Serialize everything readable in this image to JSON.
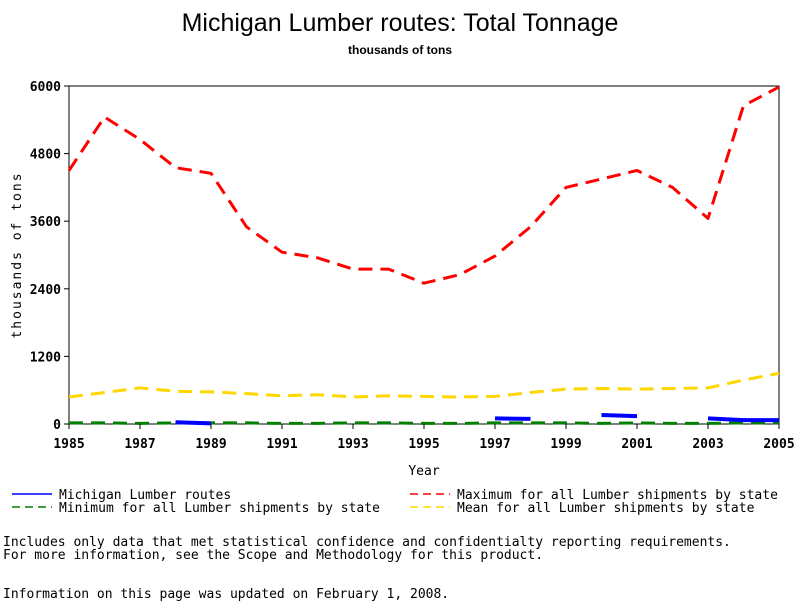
{
  "chart_data": {
    "type": "line",
    "title": "Michigan Lumber routes: Total Tonnage",
    "subtitle": "thousands of tons",
    "xlabel": "Year",
    "ylabel": "thousands of tons",
    "xlim": [
      1985,
      2005
    ],
    "ylim": [
      0,
      6000
    ],
    "x_ticks": [
      "1985",
      "1987",
      "1989",
      "1991",
      "1993",
      "1995",
      "1997",
      "1999",
      "2001",
      "2003",
      "2005"
    ],
    "y_ticks": [
      "0",
      "1200",
      "2400",
      "3600",
      "4800",
      "6000"
    ],
    "series": [
      {
        "name": "Michigan Lumber routes",
        "color": "#0000ff",
        "dash": "solid",
        "points": [
          [
            1988,
            30
          ],
          [
            1989,
            10
          ],
          [
            1997,
            100
          ],
          [
            1998,
            90
          ],
          [
            2000,
            160
          ],
          [
            2001,
            140
          ],
          [
            2003,
            100
          ],
          [
            2004,
            70
          ],
          [
            2005,
            70
          ]
        ]
      },
      {
        "name": "Maximum for all Lumber shipments by state",
        "color": "#ff0000",
        "dash": "dashed",
        "points": [
          [
            1985,
            4500
          ],
          [
            1986,
            5450
          ],
          [
            1987,
            5050
          ],
          [
            1988,
            4550
          ],
          [
            1989,
            4450
          ],
          [
            1990,
            3500
          ],
          [
            1991,
            3050
          ],
          [
            1992,
            2950
          ],
          [
            1993,
            2750
          ],
          [
            1994,
            2750
          ],
          [
            1995,
            2500
          ],
          [
            1996,
            2650
          ],
          [
            1997,
            2980
          ],
          [
            1998,
            3500
          ],
          [
            1999,
            4200
          ],
          [
            2000,
            4350
          ],
          [
            2001,
            4500
          ],
          [
            2002,
            4200
          ],
          [
            2003,
            3650
          ],
          [
            2004,
            5650
          ],
          [
            2005,
            5980
          ]
        ]
      },
      {
        "name": "Minimum for all Lumber shipments by state",
        "color": "#008000",
        "dash": "dashed",
        "points": [
          [
            1985,
            20
          ],
          [
            1986,
            20
          ],
          [
            1987,
            10
          ],
          [
            1988,
            20
          ],
          [
            1989,
            20
          ],
          [
            1990,
            20
          ],
          [
            1991,
            10
          ],
          [
            1992,
            10
          ],
          [
            1993,
            20
          ],
          [
            1994,
            20
          ],
          [
            1995,
            10
          ],
          [
            1996,
            10
          ],
          [
            1997,
            20
          ],
          [
            1998,
            20
          ],
          [
            1999,
            20
          ],
          [
            2000,
            10
          ],
          [
            2001,
            20
          ],
          [
            2002,
            10
          ],
          [
            2003,
            10
          ],
          [
            2004,
            20
          ],
          [
            2005,
            20
          ]
        ]
      },
      {
        "name": "Mean for all Lumber shipments by state",
        "color": "#ffd700",
        "dash": "dashed",
        "points": [
          [
            1985,
            480
          ],
          [
            1986,
            560
          ],
          [
            1987,
            640
          ],
          [
            1988,
            580
          ],
          [
            1989,
            570
          ],
          [
            1990,
            540
          ],
          [
            1991,
            500
          ],
          [
            1992,
            520
          ],
          [
            1993,
            480
          ],
          [
            1994,
            500
          ],
          [
            1995,
            490
          ],
          [
            1996,
            480
          ],
          [
            1997,
            490
          ],
          [
            1998,
            560
          ],
          [
            1999,
            620
          ],
          [
            2000,
            630
          ],
          [
            2001,
            620
          ],
          [
            2002,
            630
          ],
          [
            2003,
            640
          ],
          [
            2004,
            780
          ],
          [
            2005,
            900
          ]
        ]
      }
    ],
    "legend_placement": "bottom",
    "grid": false
  },
  "footer": {
    "note_line1": "Includes only data that met statistical confidence and confidentialty reporting requirements.",
    "note_line2": "For more information, see the Scope and Methodology for this product.",
    "updated": "Information on this page was updated on February 1, 2008."
  }
}
